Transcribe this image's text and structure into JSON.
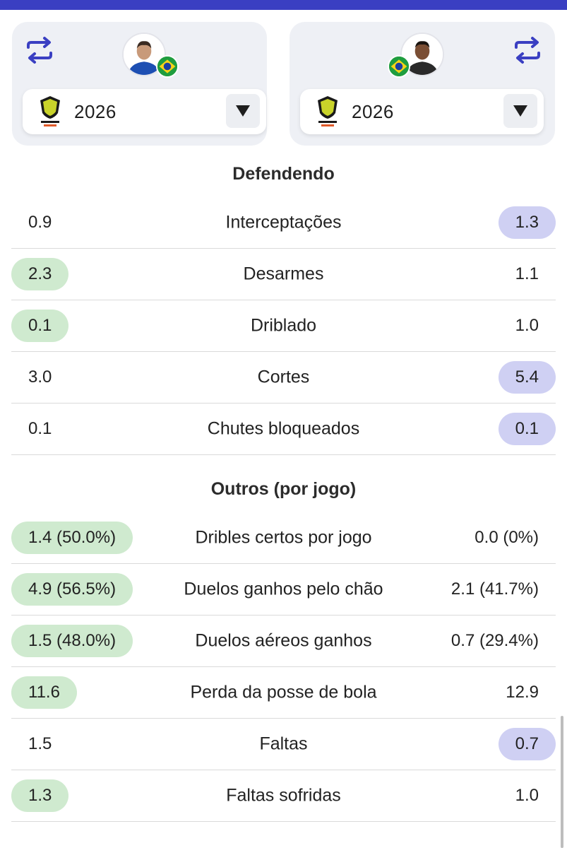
{
  "colors": {
    "accent": "#3a3fc2",
    "highlight_left": "#cfeacf",
    "highlight_right": "#cfd0f3",
    "card_bg": "#eef0f5"
  },
  "players": [
    {
      "side": "left",
      "season": "2026",
      "league_logo": "brasileirao-betano-logo",
      "flag": "brazil-flag-icon",
      "swap_icon": "swap-arrows-icon"
    },
    {
      "side": "right",
      "season": "2026",
      "league_logo": "brasileirao-betano-logo",
      "flag": "brazil-flag-icon",
      "swap_icon": "swap-arrows-icon"
    }
  ],
  "sections": [
    {
      "title": "Defendendo",
      "rows": [
        {
          "label": "Interceptações",
          "left": "0.9",
          "right": "1.3",
          "winner": "right"
        },
        {
          "label": "Desarmes",
          "left": "2.3",
          "right": "1.1",
          "winner": "left"
        },
        {
          "label": "Driblado",
          "left": "0.1",
          "right": "1.0",
          "winner": "left"
        },
        {
          "label": "Cortes",
          "left": "3.0",
          "right": "5.4",
          "winner": "right"
        },
        {
          "label": "Chutes bloqueados",
          "left": "0.1",
          "right": "0.1",
          "winner": "right"
        }
      ]
    },
    {
      "title": "Outros (por jogo)",
      "rows": [
        {
          "label": "Dribles certos por jogo",
          "left": "1.4 (50.0%)",
          "right": "0.0 (0%)",
          "winner": "left"
        },
        {
          "label": "Duelos ganhos pelo chão",
          "left": "4.9 (56.5%)",
          "right": "2.1 (41.7%)",
          "winner": "left"
        },
        {
          "label": "Duelos aéreos ganhos",
          "left": "1.5 (48.0%)",
          "right": "0.7 (29.4%)",
          "winner": "left"
        },
        {
          "label": "Perda da posse de bola",
          "left": "11.6",
          "right": "12.9",
          "winner": "left"
        },
        {
          "label": "Faltas",
          "left": "1.5",
          "right": "0.7",
          "winner": "right"
        },
        {
          "label": "Faltas sofridas",
          "left": "1.3",
          "right": "1.0",
          "winner": "left"
        }
      ]
    }
  ]
}
